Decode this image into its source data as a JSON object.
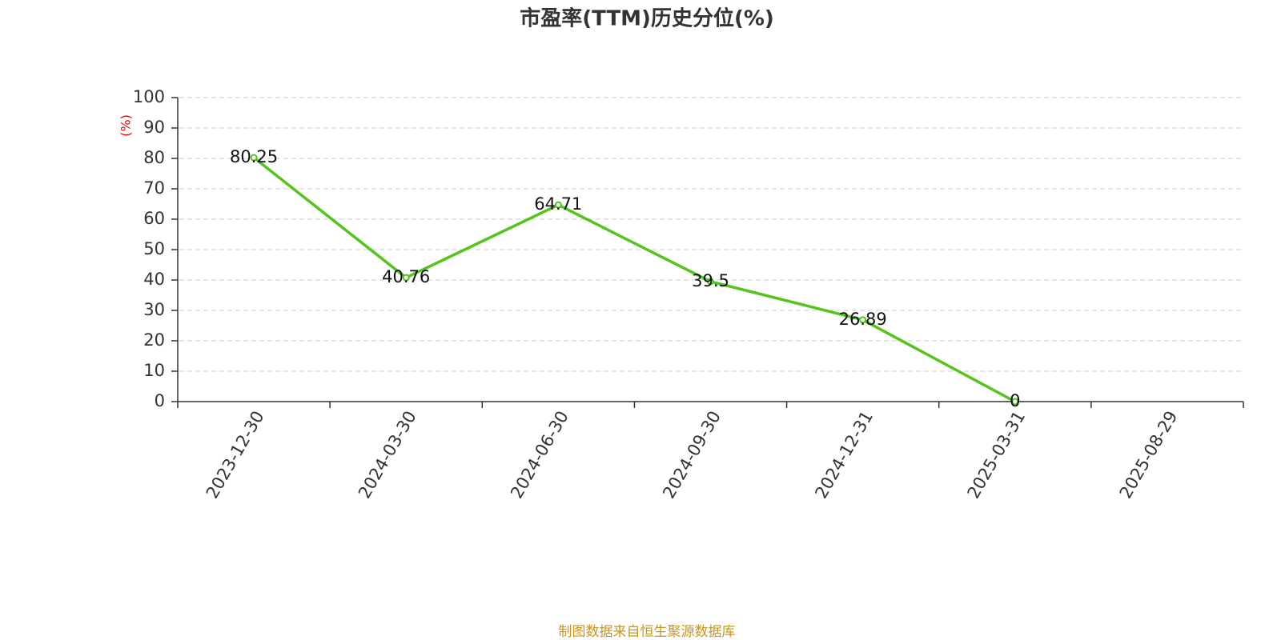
{
  "chart_data": {
    "type": "line",
    "title": "市盈率(TTM)历史分位(%)",
    "y_label": "(%)",
    "categories": [
      "2023-12-30",
      "2024-03-30",
      "2024-06-30",
      "2024-09-30",
      "2024-12-31",
      "2025-03-31",
      "2025-08-29"
    ],
    "series": [
      {
        "color": "#52c41a",
        "values": [
          80.25,
          40.76,
          64.71,
          39.5,
          26.89,
          0,
          null
        ]
      }
    ],
    "ylim": [
      0,
      100
    ],
    "yticks": [
      0,
      10,
      20,
      30,
      40,
      50,
      60,
      70,
      80,
      90,
      100
    ],
    "grid": true,
    "source": "制图数据来自恒生聚源数据库"
  }
}
